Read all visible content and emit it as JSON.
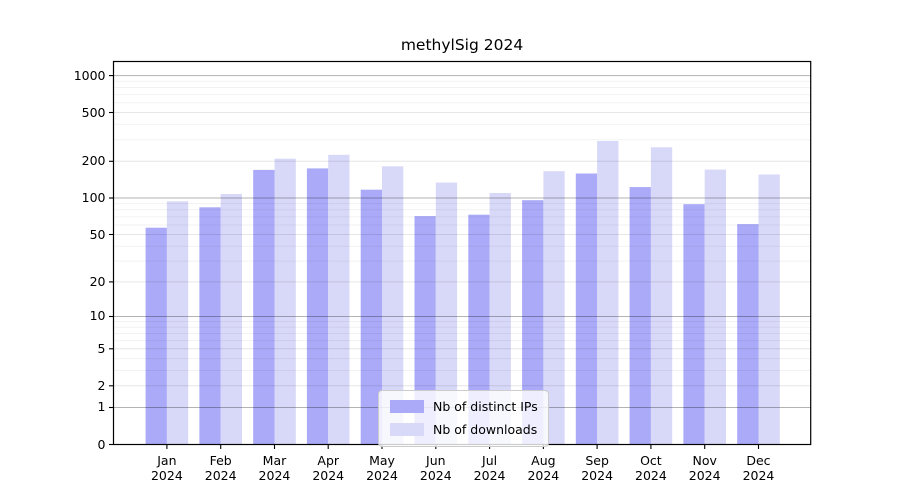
{
  "chart_data": {
    "type": "bar",
    "title": "methylSig 2024",
    "categories": [
      "Jan 2024",
      "Feb 2024",
      "Mar 2024",
      "Apr 2024",
      "May 2024",
      "Jun 2024",
      "Jul 2024",
      "Aug 2024",
      "Sep 2024",
      "Oct 2024",
      "Nov 2024",
      "Dec 2024"
    ],
    "series": [
      {
        "name": "Nb of distinct IPs",
        "color": "#aaaaf8",
        "values": [
          57,
          84,
          170,
          175,
          117,
          71,
          73,
          96,
          159,
          123,
          89,
          61
        ]
      },
      {
        "name": "Nb of downloads",
        "color": "#d8d8f8",
        "values": [
          94,
          108,
          210,
          226,
          182,
          134,
          110,
          166,
          293,
          260,
          171,
          156
        ]
      }
    ],
    "xlabel": "",
    "ylabel": "",
    "y_scale": "log10(value+1)",
    "y_ticks": [
      0,
      1,
      2,
      5,
      10,
      20,
      50,
      100,
      200,
      500,
      1000
    ],
    "y_minor_ticks": [
      3,
      4,
      6,
      7,
      8,
      9,
      30,
      40,
      60,
      70,
      80,
      90,
      300,
      400,
      600,
      700,
      800,
      900
    ],
    "ylim": [
      0,
      1275
    ],
    "grid": true,
    "legend_position": "lower center"
  },
  "legend": {
    "items": [
      {
        "label": "Nb of distinct IPs",
        "color": "#aaaaf8"
      },
      {
        "label": "Nb of downloads",
        "color": "#d8d8f8"
      }
    ]
  },
  "colors": {
    "background": "#ffffff",
    "spine": "#000000",
    "grid_decade": "#b3b3b3",
    "grid_labeled": "#e6e6e6",
    "grid_minor": "#f2f2f2",
    "text": "#000000"
  }
}
